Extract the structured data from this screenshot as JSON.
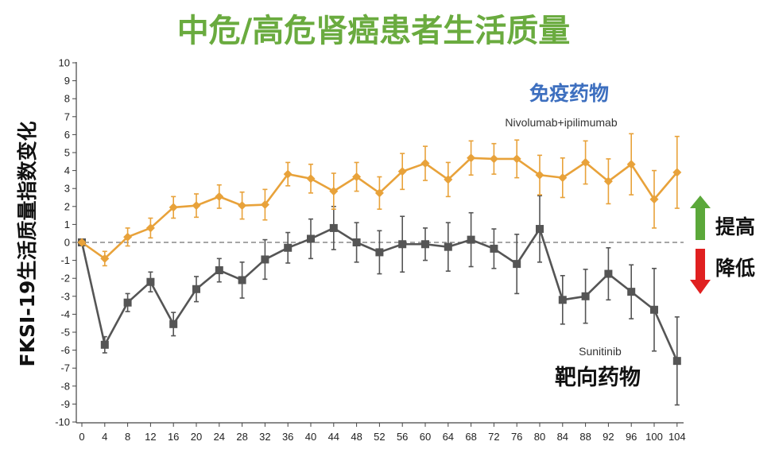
{
  "chart_data": {
    "type": "line",
    "title": "中危/高危肾癌患者生活质量",
    "ylabel": "FKSI-19生活质量指数变化",
    "xlabel": "",
    "ylim": [
      -10,
      10
    ],
    "yticks": [
      -10,
      -9,
      -8,
      -7,
      -6,
      -5,
      -4,
      -3,
      -2,
      -1,
      0,
      1,
      2,
      3,
      4,
      5,
      6,
      7,
      8,
      9,
      10
    ],
    "x": [
      0,
      4,
      8,
      12,
      16,
      20,
      24,
      28,
      32,
      36,
      40,
      44,
      48,
      52,
      56,
      60,
      64,
      68,
      72,
      76,
      80,
      84,
      88,
      92,
      96,
      100,
      104
    ],
    "grid": false,
    "series": [
      {
        "name": "Nivolumab+ipilimumab",
        "label_zh": "免疫药物",
        "color": "#E8A23A",
        "marker": "diamond",
        "values": [
          0,
          -0.9,
          0.3,
          0.8,
          1.95,
          2.05,
          2.55,
          2.05,
          2.1,
          3.8,
          3.55,
          2.85,
          3.65,
          2.75,
          3.95,
          4.4,
          3.5,
          4.7,
          4.65,
          4.65,
          3.75,
          3.6,
          4.45,
          3.4,
          4.35,
          2.4,
          3.9
        ],
        "err": [
          0,
          0.4,
          0.5,
          0.55,
          0.6,
          0.65,
          0.65,
          0.75,
          0.85,
          0.65,
          0.8,
          1.0,
          0.8,
          0.9,
          1.0,
          0.95,
          0.95,
          0.95,
          0.85,
          1.05,
          1.1,
          1.1,
          1.2,
          1.25,
          1.7,
          1.6,
          2.0
        ]
      },
      {
        "name": "Sunitinib",
        "label_zh": "靶向药物",
        "color": "#555555",
        "marker": "square",
        "values": [
          0,
          -5.7,
          -3.35,
          -2.2,
          -4.55,
          -2.6,
          -1.55,
          -2.1,
          -0.95,
          -0.3,
          0.2,
          0.8,
          0.0,
          -0.55,
          -0.1,
          -0.1,
          -0.25,
          0.15,
          -0.35,
          -1.2,
          0.75,
          -3.2,
          -3.0,
          -1.75,
          -2.75,
          -3.75,
          -6.6
        ],
        "err": [
          0,
          0.45,
          0.5,
          0.55,
          0.65,
          0.7,
          0.65,
          1.0,
          1.1,
          0.85,
          1.1,
          1.2,
          1.1,
          1.2,
          1.55,
          0.9,
          1.35,
          1.5,
          1.1,
          1.65,
          1.85,
          1.35,
          1.5,
          1.45,
          1.5,
          2.3,
          2.45
        ]
      }
    ],
    "indicators": {
      "up_label": "提高",
      "down_label": "降低",
      "up_color": "#5BA83A",
      "down_color": "#E02020"
    },
    "title_color": "#6AAB3F",
    "immuno_label_color": "#3D6FBF"
  }
}
